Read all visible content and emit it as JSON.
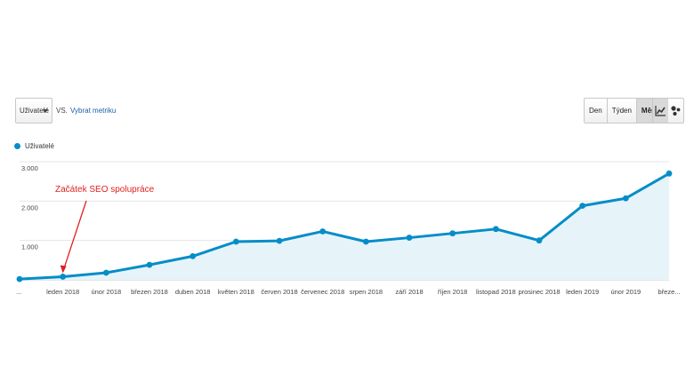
{
  "toolbar": {
    "metric_label": "Uživatelé",
    "vs_label": "VS.",
    "pick_metric_label": "Vybrat metriku",
    "granularity": [
      {
        "label": "Den",
        "active": false
      },
      {
        "label": "Týden",
        "active": false
      },
      {
        "label": "Měsíc",
        "active": true
      }
    ],
    "chart_type_icons": [
      "line-chart-icon",
      "motion-chart-icon"
    ]
  },
  "legend": {
    "series_label": "Uživatelé",
    "color": "#058dc7"
  },
  "annotation": {
    "text": "Začátek SEO spolupráce",
    "color": "#e02020",
    "target_index": 1
  },
  "chart_data": {
    "type": "area",
    "categories": [
      "...",
      "leden 2018",
      "únor 2018",
      "březen 2018",
      "duben 2018",
      "květen 2018",
      "červen 2018",
      "červenec 2018",
      "srpen 2018",
      "září 2018",
      "říjen 2018",
      "listopad 2018",
      "prosinec 2018",
      "leden 2019",
      "únor 2019",
      "březe..."
    ],
    "series": [
      {
        "name": "Uživatelé",
        "values": [
          20,
          80,
          180,
          380,
          600,
          970,
          990,
          1230,
          970,
          1070,
          1180,
          1290,
          1000,
          1880,
          2070,
          2700
        ]
      }
    ],
    "y_ticks": [
      "1.000",
      "2.000",
      "3.000"
    ],
    "y_tick_values": [
      1000,
      2000,
      3000
    ],
    "ylim": [
      0,
      3000
    ],
    "grid": true,
    "line_color": "#058dc7",
    "fill_color": "#e6f4fa"
  }
}
